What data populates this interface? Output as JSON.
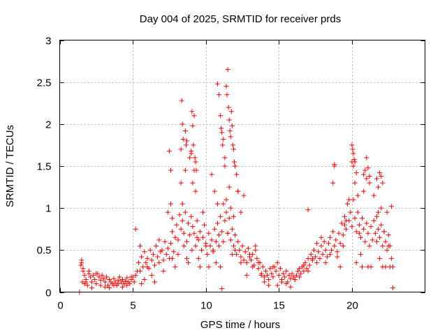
{
  "chart_data": {
    "type": "scatter",
    "title": "Day 004 of 2025, SRMTID for receiver prds",
    "xlabel": "GPS time / hours",
    "ylabel": "SRMTID / TECUs",
    "xlim": [
      0,
      25
    ],
    "ylim": [
      0,
      3
    ],
    "xticks": [
      0,
      5,
      10,
      15,
      20
    ],
    "yticks": [
      0,
      0.5,
      1,
      1.5,
      2,
      2.5,
      3
    ],
    "xtick_labels": [
      "0",
      "5",
      "10",
      "15",
      "20"
    ],
    "ytick_labels": [
      "0",
      "0.5",
      "1",
      "1.5",
      "2",
      "2.5",
      "3"
    ],
    "grid": true,
    "marker": "+",
    "color": "#ff0000",
    "series": [
      {
        "name": "SRMTID",
        "x": [
          1.35,
          1.45,
          1.5,
          1.55,
          1.6,
          1.7,
          1.8,
          1.9,
          2.0,
          2.1,
          2.2,
          2.3,
          2.4,
          2.5,
          2.6,
          2.7,
          2.8,
          2.9,
          3.0,
          3.1,
          3.2,
          3.3,
          3.4,
          3.5,
          3.6,
          3.7,
          3.8,
          3.9,
          4.0,
          4.1,
          4.2,
          4.3,
          4.4,
          4.5,
          4.6,
          4.7,
          4.8,
          4.9,
          5.0,
          5.1,
          5.2,
          5.3,
          5.4,
          5.5,
          5.6,
          5.7,
          5.8,
          5.9,
          6.0,
          6.1,
          6.2,
          6.3,
          6.4,
          6.5,
          6.6,
          6.7,
          6.8,
          6.9,
          7.0,
          7.1,
          7.2,
          7.3,
          7.4,
          7.5,
          7.6,
          7.7,
          7.8,
          7.9,
          8.0,
          8.1,
          8.2,
          8.3,
          8.4,
          8.5,
          8.6,
          8.7,
          8.8,
          8.9,
          9.0,
          9.1,
          9.2,
          9.3,
          9.4,
          9.5,
          9.6,
          9.7,
          9.8,
          9.9,
          10.0,
          10.1,
          10.2,
          10.3,
          10.4,
          10.5,
          10.6,
          10.7,
          10.8,
          10.9,
          11.0,
          11.1,
          11.2,
          11.3,
          11.4,
          11.5,
          11.6,
          11.7,
          11.8,
          11.9,
          12.0,
          12.1,
          12.2,
          12.3,
          12.4,
          12.5,
          12.6,
          12.7,
          12.8,
          12.9,
          13.0,
          13.1,
          13.2,
          13.3,
          13.4,
          13.5,
          13.6,
          13.7,
          13.8,
          13.9,
          14.0,
          14.1,
          14.2,
          14.3,
          14.4,
          14.5,
          14.6,
          14.7,
          14.8,
          14.9,
          15.0,
          15.1,
          15.2,
          15.3,
          15.4,
          15.5,
          15.6,
          15.7,
          15.8,
          15.9,
          16.0,
          16.1,
          16.2,
          16.3,
          16.4,
          16.5,
          16.6,
          16.7,
          16.8,
          16.9,
          17.0,
          17.1,
          17.2,
          17.3,
          17.4,
          17.5,
          17.6,
          17.7,
          17.8,
          17.9,
          18.0,
          18.1,
          18.2,
          18.3,
          18.4,
          18.5,
          18.6,
          18.7,
          18.8,
          18.9,
          19.0,
          19.1,
          19.2,
          19.3,
          19.4,
          19.5,
          19.6,
          19.7,
          19.8,
          19.9,
          20.0,
          20.1,
          20.2,
          20.3,
          20.4,
          20.5,
          20.6,
          20.7,
          20.8,
          20.9,
          21.0,
          21.1,
          21.2,
          21.3,
          21.4,
          21.5,
          21.6,
          21.7,
          21.8,
          21.9,
          22.0,
          22.1,
          22.2,
          22.3,
          22.4,
          22.5,
          22.6,
          22.7,
          22.8,
          1.5,
          1.6,
          1.7,
          1.8,
          2.0,
          2.2,
          2.5,
          2.8,
          3.1,
          3.4,
          3.7,
          4.0,
          4.3,
          4.6,
          4.9,
          5.2,
          5.5,
          5.6,
          5.8,
          6.0,
          6.3,
          6.5,
          6.8,
          7.1,
          7.4,
          7.6,
          7.7,
          7.9,
          8.1,
          8.3,
          8.4,
          8.5,
          8.6,
          8.7,
          8.8,
          8.9,
          9.0,
          9.05,
          9.1,
          9.2,
          9.3,
          9.4,
          9.5,
          9.6,
          9.8,
          10.0,
          10.2,
          10.4,
          10.5,
          10.6,
          10.7,
          10.8,
          10.9,
          11.0,
          11.1,
          11.2,
          11.3,
          11.4,
          11.5,
          11.6,
          11.7,
          11.8,
          11.9,
          12.0,
          12.1,
          12.2,
          12.4,
          12.6,
          12.8,
          13.0,
          13.2,
          13.4,
          13.6,
          13.8,
          14.0,
          14.3,
          14.6,
          14.9,
          15.2,
          15.5,
          15.8,
          16.1,
          16.4,
          16.7,
          17.0,
          17.3,
          17.6,
          17.9,
          18.2,
          18.5,
          18.7,
          18.8,
          19.0,
          19.2,
          19.4,
          19.6,
          19.8,
          20.0,
          20.1,
          20.2,
          20.3,
          20.4,
          20.5,
          20.6,
          20.7,
          20.8,
          20.9,
          21.0,
          21.1,
          21.2,
          21.3,
          21.5,
          21.7,
          21.8,
          21.9,
          22.0,
          22.1,
          22.2,
          22.3,
          22.4,
          22.5,
          22.6,
          22.7,
          22.8,
          8.3,
          8.35,
          8.4,
          8.45,
          8.6,
          8.65,
          8.7,
          9.0,
          9.05,
          9.1,
          9.15,
          9.2,
          9.25,
          9.3,
          9.35,
          10.8,
          10.9,
          11.0,
          11.05,
          11.1,
          11.15,
          11.2,
          11.3,
          11.4,
          11.45,
          11.5,
          11.55,
          11.6,
          11.65,
          11.7,
          11.75,
          11.8,
          11.85,
          11.9,
          11.95,
          12.0,
          12.2,
          12.4,
          7.5,
          7.6,
          7.7,
          17.0,
          18.8,
          19.5,
          20.0,
          20.05,
          20.1,
          20.15,
          20.2,
          20.3,
          20.8,
          21.0,
          21.1,
          21.2,
          21.7,
          21.8,
          21.9,
          22.0,
          22.1
        ],
        "y": [
          0.0,
          0.32,
          0.38,
          0.12,
          0.25,
          0.2,
          0.15,
          0.08,
          0.22,
          0.18,
          0.12,
          0.2,
          0.15,
          0.1,
          0.22,
          0.18,
          0.14,
          0.2,
          0.16,
          0.12,
          0.18,
          0.08,
          0.15,
          0.12,
          0.1,
          0.16,
          0.12,
          0.08,
          0.14,
          0.18,
          0.12,
          0.15,
          0.1,
          0.13,
          0.17,
          0.12,
          0.1,
          0.15,
          0.18,
          0.12,
          0.2,
          0.25,
          0.35,
          0.55,
          0.42,
          0.3,
          0.48,
          0.35,
          0.4,
          0.28,
          0.5,
          0.38,
          0.45,
          0.32,
          0.55,
          0.42,
          0.62,
          0.48,
          0.5,
          0.38,
          0.6,
          0.45,
          0.52,
          0.4,
          0.58,
          0.72,
          0.48,
          0.65,
          0.8,
          0.62,
          0.92,
          0.75,
          0.85,
          0.7,
          0.95,
          0.6,
          0.82,
          0.68,
          0.9,
          0.78,
          0.7,
          0.55,
          0.85,
          0.62,
          0.72,
          0.5,
          0.65,
          0.8,
          0.58,
          0.45,
          0.7,
          0.55,
          0.62,
          0.48,
          0.75,
          0.6,
          0.82,
          0.68,
          0.9,
          0.72,
          1.05,
          0.85,
          0.95,
          0.7,
          0.88,
          0.62,
          0.75,
          0.55,
          0.68,
          0.45,
          0.6,
          0.5,
          0.42,
          0.55,
          0.38,
          0.48,
          0.35,
          0.52,
          0.42,
          0.38,
          0.45,
          0.32,
          0.5,
          0.4,
          0.28,
          0.35,
          0.22,
          0.3,
          0.18,
          0.25,
          0.2,
          0.15,
          0.28,
          0.22,
          0.18,
          0.3,
          0.25,
          0.35,
          0.2,
          0.28,
          0.15,
          0.22,
          0.18,
          0.25,
          0.12,
          0.2,
          0.16,
          0.22,
          0.18,
          0.15,
          0.2,
          0.25,
          0.18,
          0.22,
          0.3,
          0.25,
          0.35,
          0.28,
          0.4,
          0.32,
          0.45,
          0.38,
          0.5,
          0.42,
          0.35,
          0.48,
          0.4,
          0.55,
          0.45,
          0.6,
          0.5,
          0.42,
          0.58,
          0.65,
          0.5,
          0.72,
          0.55,
          0.62,
          0.48,
          0.7,
          0.58,
          0.82,
          0.68,
          0.9,
          0.75,
          1.05,
          0.85,
          0.95,
          0.78,
          1.1,
          0.88,
          0.72,
          0.95,
          0.8,
          0.65,
          0.88,
          0.75,
          0.6,
          0.82,
          0.7,
          0.55,
          0.78,
          0.62,
          0.85,
          0.7,
          0.9,
          0.75,
          0.65,
          0.8,
          0.55,
          0.72,
          0.6,
          0.5,
          0.68,
          0.55,
          0.4,
          0.05,
          0.35,
          0.28,
          0.1,
          0.12,
          0.25,
          0.05,
          0.22,
          0.08,
          0.06,
          0.05,
          0.08,
          0.1,
          0.06,
          0.08,
          0.18,
          0.75,
          0.25,
          0.1,
          0.15,
          0.3,
          0.2,
          0.12,
          0.35,
          0.25,
          0.95,
          1.05,
          0.4,
          0.3,
          0.45,
          1.3,
          1.05,
          0.55,
          1.45,
          0.4,
          0.35,
          1.6,
          1.65,
          0.5,
          1.3,
          1.45,
          1.2,
          0.65,
          0.4,
          0.3,
          0.95,
          0.55,
          0.3,
          1.4,
          0.5,
          1.2,
          0.35,
          1.05,
          0.55,
          0.3,
          0.04,
          0.6,
          1.5,
          1.1,
          0.7,
          1.25,
          1.0,
          0.45,
          0.9,
          0.5,
          1.4,
          1.2,
          0.35,
          1.15,
          0.2,
          0.45,
          0.3,
          0.55,
          0.35,
          0.2,
          0.12,
          0.08,
          0.3,
          0.08,
          0.12,
          0.1,
          0.06,
          0.15,
          0.28,
          0.32,
          0.25,
          0.4,
          0.58,
          0.65,
          0.35,
          0.45,
          1.3,
          1.5,
          0.42,
          0.3,
          0.55,
          0.85,
          1.1,
          1.55,
          1.5,
          1.3,
          0.35,
          1.15,
          0.7,
          0.45,
          0.3,
          1.2,
          1.45,
          1.35,
          0.3,
          1.38,
          0.3,
          1.15,
          0.6,
          0.95,
          0.4,
          1.0,
          0.3,
          0.72,
          0.3,
          0.95,
          0.55,
          0.3,
          1.02,
          0.3,
          1.7,
          2.28,
          2.0,
          1.82,
          1.92,
          1.75,
          1.8,
          1.68,
          2.15,
          1.98,
          1.75,
          2.1,
          1.6,
          1.55,
          1.45,
          2.48,
          2.35,
          2.1,
          1.95,
          1.9,
          1.75,
          1.82,
          1.6,
          2.45,
          2.35,
          2.65,
          2.2,
          2.05,
          1.92,
          1.85,
          2.15,
          1.98,
          1.75,
          1.7,
          1.55,
          1.5,
          1.2,
          0.95,
          1.68,
          1.45,
          0.88,
          0.98,
          1.52,
          0.8,
          1.75,
          1.7,
          1.65,
          1.58,
          1.55,
          1.42,
          1.4,
          1.6,
          1.48,
          1.3,
          1.35,
          1.25,
          1.42,
          1.38,
          1.3
        ]
      }
    ]
  }
}
